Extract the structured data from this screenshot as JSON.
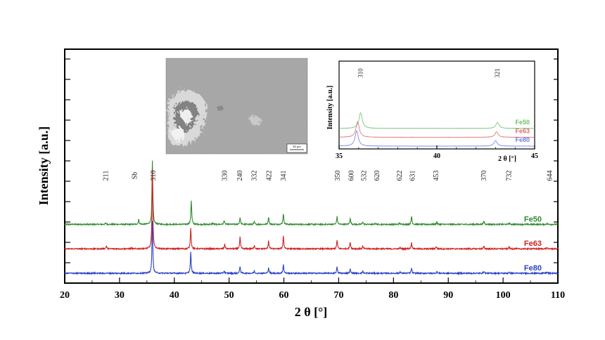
{
  "chart_data": [
    {
      "type": "line",
      "xlabel": "2 θ [°]",
      "ylabel": "Intensity [a.u.]",
      "xlim": [
        20,
        110
      ],
      "xticks": [
        "20",
        "30",
        "40",
        "50",
        "60",
        "70",
        "80",
        "90",
        "100",
        "110"
      ],
      "series": [
        {
          "name": "Fe50",
          "color": "#2e8b2e",
          "offset": 2.4,
          "peaks": [
            [
              27.5,
              0.06
            ],
            [
              33.5,
              0.25
            ],
            [
              36.0,
              3.1
            ],
            [
              43.1,
              1.18
            ],
            [
              47.0,
              0.06
            ],
            [
              49.1,
              0.2
            ],
            [
              52.0,
              0.35
            ],
            [
              54.6,
              0.13
            ],
            [
              57.2,
              0.37
            ],
            [
              59.9,
              0.53
            ],
            [
              69.7,
              0.38
            ],
            [
              72.1,
              0.3
            ],
            [
              74.4,
              0.13
            ],
            [
              76.7,
              0.05
            ],
            [
              81.1,
              0.07
            ],
            [
              83.3,
              0.4
            ],
            [
              87.9,
              0.12
            ],
            [
              96.5,
              0.17
            ],
            [
              101.1,
              0.07
            ],
            [
              108.0,
              0.05
            ]
          ]
        },
        {
          "name": "Fe63",
          "color": "#d22020",
          "offset": 1.2,
          "peaks": [
            [
              27.6,
              0.14
            ],
            [
              32.2,
              0.03
            ],
            [
              36.0,
              3.9
            ],
            [
              43.0,
              1.05
            ],
            [
              49.2,
              0.22
            ],
            [
              52.0,
              0.58
            ],
            [
              54.6,
              0.18
            ],
            [
              57.2,
              0.4
            ],
            [
              59.9,
              0.63
            ],
            [
              69.7,
              0.42
            ],
            [
              72.1,
              0.33
            ],
            [
              74.4,
              0.12
            ],
            [
              81.2,
              0.06
            ],
            [
              83.3,
              0.3
            ],
            [
              87.8,
              0.11
            ],
            [
              96.5,
              0.12
            ],
            [
              101.1,
              0.1
            ],
            [
              108.0,
              0.06
            ]
          ]
        },
        {
          "name": "Fe80",
          "color": "#2a3fc9",
          "offset": 0.0,
          "peaks": [
            [
              36.0,
              2.55
            ],
            [
              43.0,
              1.05
            ],
            [
              49.1,
              0.12
            ],
            [
              52.0,
              0.35
            ],
            [
              54.6,
              0.1
            ],
            [
              57.2,
              0.28
            ],
            [
              59.9,
              0.43
            ],
            [
              69.7,
              0.3
            ],
            [
              72.1,
              0.2
            ],
            [
              74.4,
              0.1
            ],
            [
              81.2,
              0.07
            ],
            [
              83.3,
              0.25
            ],
            [
              87.9,
              0.08
            ],
            [
              96.5,
              0.1
            ],
            [
              101.1,
              0.05
            ],
            [
              108.0,
              0.05
            ]
          ]
        }
      ],
      "annotations": [
        {
          "label": "211",
          "x": 27.5
        },
        {
          "label": "Sb",
          "x": 32.8
        },
        {
          "label": "310",
          "x": 36.2
        },
        {
          "label": "330",
          "x": 49.2
        },
        {
          "label": "240",
          "x": 52.0
        },
        {
          "label": "332",
          "x": 54.6
        },
        {
          "label": "422",
          "x": 57.3
        },
        {
          "label": "341",
          "x": 59.9
        },
        {
          "label": "350",
          "x": 69.8
        },
        {
          "label": "600",
          "x": 72.3
        },
        {
          "label": "532",
          "x": 74.6
        },
        {
          "label": "620",
          "x": 77.0
        },
        {
          "label": "622",
          "x": 81.1
        },
        {
          "label": "631",
          "x": 83.5
        },
        {
          "label": "453",
          "x": 87.8
        },
        {
          "label": "370",
          "x": 96.5
        },
        {
          "label": "732",
          "x": 101.1
        },
        {
          "label": "644",
          "x": 108.5
        }
      ]
    },
    {
      "type": "line",
      "xlabel": "2 θ [°]",
      "ylabel": "Intensity [a.u.]",
      "xlim": [
        35,
        45
      ],
      "xticks": [
        "35",
        "40",
        "45"
      ],
      "series": [
        {
          "name": "Fe50",
          "color": "#6dbf6d",
          "offset": 1.8,
          "peaks": [
            [
              36.1,
              1.6
            ],
            [
              43.1,
              0.6
            ]
          ]
        },
        {
          "name": "Fe63",
          "color": "#e26a6a",
          "offset": 0.9,
          "peaks": [
            [
              35.95,
              1.6
            ],
            [
              43.05,
              0.55
            ]
          ]
        },
        {
          "name": "Fe80",
          "color": "#6f7fe0",
          "offset": 0.0,
          "peaks": [
            [
              35.9,
              1.55
            ],
            [
              43.0,
              0.55
            ]
          ]
        }
      ],
      "annotations": [
        {
          "label": "310",
          "x": 36.1
        },
        {
          "label": "321",
          "x": 43.1
        }
      ]
    }
  ],
  "sem_image": {
    "scale_bar_label": "50 µm"
  }
}
